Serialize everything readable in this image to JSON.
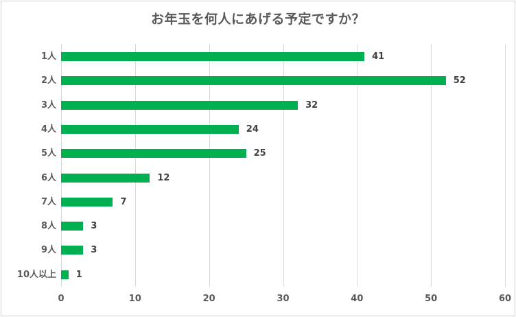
{
  "chart_data": {
    "type": "bar",
    "orientation": "horizontal",
    "title": "お年玉を何人にあげる予定ですか？",
    "xlabel": "",
    "ylabel": "",
    "categories": [
      "1人",
      "2人",
      "3人",
      "4人",
      "5人",
      "6人",
      "7人",
      "8人",
      "9人",
      "10人以上"
    ],
    "values": [
      41,
      52,
      32,
      24,
      25,
      12,
      7,
      3,
      3,
      1
    ],
    "xlim": [
      0,
      60
    ],
    "xticks": [
      "0",
      "10",
      "20",
      "30",
      "40",
      "50",
      "60"
    ],
    "grid": true,
    "legend": null,
    "data_labels": true,
    "bar_color": "#00b050"
  }
}
